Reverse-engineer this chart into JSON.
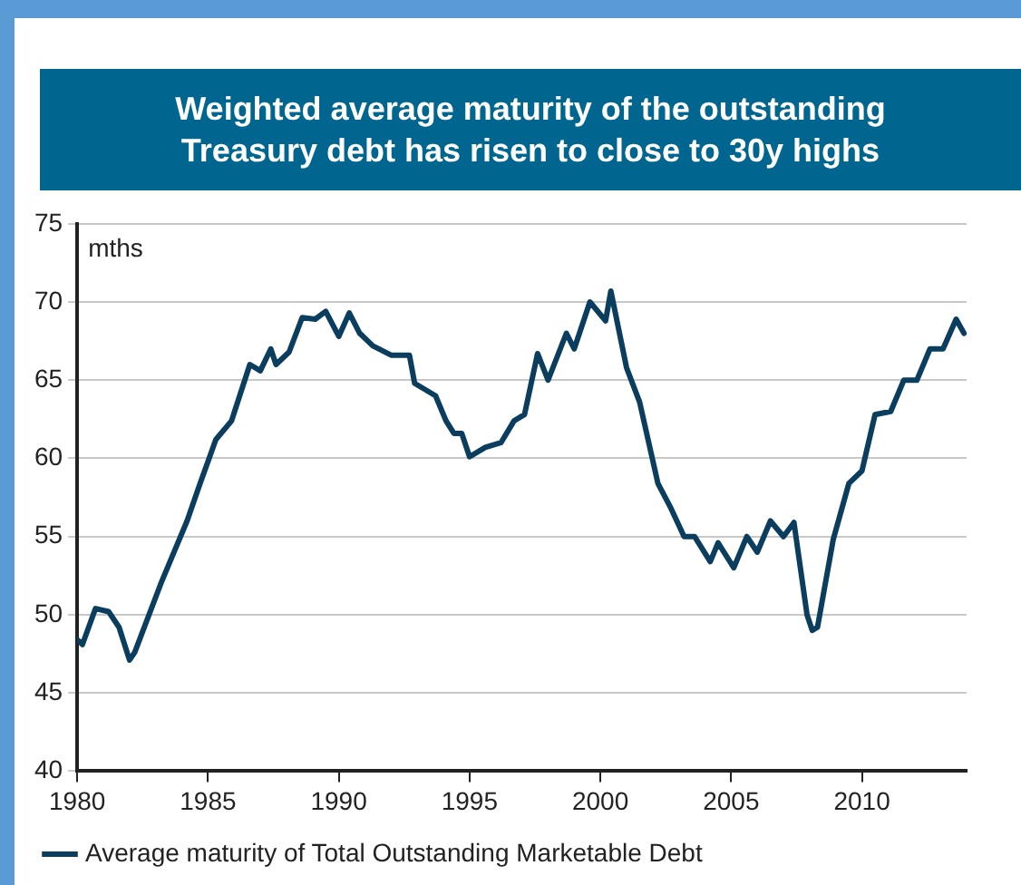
{
  "chart_data": {
    "type": "line",
    "title": "Weighted average maturity of the outstanding Treasury debt has risen to close to 30y highs",
    "ylabel": "mths",
    "xlim": [
      1980,
      2014
    ],
    "xticks": [
      1980,
      1985,
      1990,
      1995,
      2000,
      2005,
      2010
    ],
    "ylim": [
      40,
      75
    ],
    "yticks": [
      40,
      45,
      50,
      55,
      60,
      65,
      70,
      75
    ],
    "grid": "y",
    "legend": "bottom",
    "marker": "none",
    "line_style": "solid",
    "series": [
      {
        "name": "Average maturity of Total Outstanding Marketable Debt",
        "color": "#0b3d5e",
        "x": [
          1980,
          1980.2,
          1980.7,
          1981.2,
          1981.6,
          1982.0,
          1982.2,
          1983.2,
          1983.7,
          1984.2,
          1984.7,
          1985.3,
          1985.9,
          1986.6,
          1987.0,
          1987.4,
          1987.6,
          1988.1,
          1988.6,
          1989.1,
          1989.5,
          1990.0,
          1990.4,
          1990.8,
          1991.3,
          1992.0,
          1992.7,
          1992.9,
          1993.7,
          1994.1,
          1994.4,
          1994.7,
          1995.0,
          1995.6,
          1996.2,
          1996.7,
          1997.1,
          1997.6,
          1998.0,
          1998.7,
          1999.0,
          1999.6,
          2000.2,
          2000.4,
          2001.0,
          2001.5,
          2002.2,
          2002.7,
          2003.2,
          2003.6,
          2004.2,
          2004.5,
          2005.1,
          2005.6,
          2006.0,
          2006.5,
          2007.0,
          2007.4,
          2007.9,
          2008.1,
          2008.3,
          2008.9,
          2009.5,
          2010.0,
          2010.5,
          2011.1,
          2011.6,
          2012.1,
          2012.6,
          2013.1,
          2013.6,
          2013.9
        ],
        "values": [
          48.4,
          48.1,
          50.4,
          50.2,
          49.2,
          47.1,
          47.6,
          52.0,
          54.0,
          56.0,
          58.4,
          61.2,
          62.4,
          66.0,
          65.6,
          67.0,
          66.0,
          66.8,
          69.0,
          68.9,
          69.4,
          67.8,
          69.3,
          68.0,
          67.2,
          66.6,
          66.6,
          64.8,
          64.0,
          62.4,
          61.6,
          61.6,
          60.1,
          60.7,
          61.0,
          62.4,
          62.8,
          66.7,
          65.0,
          68.0,
          67.0,
          70.0,
          68.8,
          70.7,
          65.8,
          63.6,
          58.4,
          56.8,
          55.0,
          55.0,
          53.4,
          54.6,
          53.0,
          55.0,
          54.0,
          56.0,
          55.0,
          55.9,
          50.0,
          49.0,
          49.2,
          54.8,
          58.4,
          59.2,
          62.8,
          63.0,
          65.0,
          65.0,
          67.0,
          67.0,
          68.9,
          68.0
        ]
      }
    ]
  }
}
